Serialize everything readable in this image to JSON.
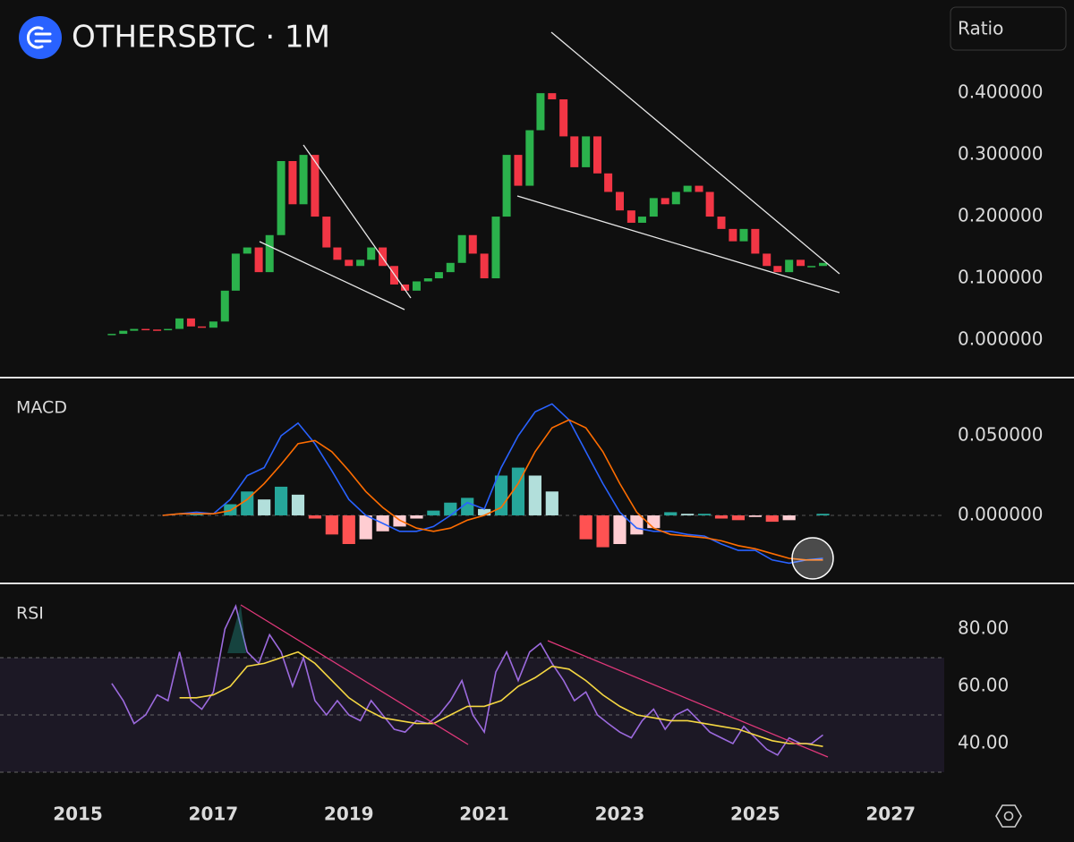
{
  "header": {
    "symbol_title": "OTHERSBTC · 1M",
    "scale_button": "Ratio"
  },
  "chart_data": [
    {
      "type": "candlestick",
      "x": [
        2015.5,
        2015.67,
        2015.83,
        2016,
        2016.17,
        2016.33,
        2016.5,
        2016.67,
        2016.83,
        2017,
        2017.17,
        2017.33,
        2017.5,
        2017.67,
        2017.83,
        2018,
        2018.17,
        2018.33,
        2018.5,
        2018.67,
        2018.83,
        2019,
        2019.17,
        2019.33,
        2019.5,
        2019.67,
        2019.83,
        2020,
        2020.17,
        2020.33,
        2020.5,
        2020.67,
        2020.83,
        2021,
        2021.17,
        2021.33,
        2021.5,
        2021.67,
        2021.83,
        2022,
        2022.17,
        2022.33,
        2022.5,
        2022.67,
        2022.83,
        2023,
        2023.17,
        2023.33,
        2023.5,
        2023.67,
        2023.83,
        2024,
        2024.17,
        2024.33,
        2024.5,
        2024.67,
        2024.83,
        2025,
        2025.17,
        2025.33,
        2025.5,
        2025.67,
        2025.83,
        2026
      ],
      "values": [
        0.01,
        0.015,
        0.018,
        0.017,
        0.016,
        0.018,
        0.035,
        0.022,
        0.02,
        0.03,
        0.08,
        0.14,
        0.15,
        0.11,
        0.17,
        0.29,
        0.22,
        0.3,
        0.2,
        0.15,
        0.13,
        0.12,
        0.13,
        0.15,
        0.12,
        0.09,
        0.08,
        0.095,
        0.1,
        0.11,
        0.125,
        0.17,
        0.14,
        0.1,
        0.2,
        0.3,
        0.25,
        0.34,
        0.4,
        0.39,
        0.33,
        0.28,
        0.33,
        0.27,
        0.24,
        0.21,
        0.19,
        0.2,
        0.23,
        0.22,
        0.24,
        0.25,
        0.24,
        0.2,
        0.18,
        0.16,
        0.18,
        0.14,
        0.12,
        0.11,
        0.13,
        0.12,
        0.12,
        0.125
      ],
      "up_color": "#2bb24c",
      "down_color": "#f23645",
      "xlim": [
        2013.85,
        2027.79
      ],
      "ylim": [
        -0.058,
        0.551
      ],
      "yticks": [
        {
          "value": 0.4,
          "label": "0.400000"
        },
        {
          "value": 0.3,
          "label": "0.300000"
        },
        {
          "value": 0.2,
          "label": "0.200000"
        },
        {
          "value": 0.1,
          "label": "0.100000"
        },
        {
          "value": 0,
          "label": "0.000000"
        }
      ]
    },
    {
      "type": "macd",
      "title": "MACD",
      "x": [
        2016.25,
        2016.5,
        2016.75,
        2017,
        2017.25,
        2017.5,
        2017.75,
        2018,
        2018.25,
        2018.5,
        2018.75,
        2019,
        2019.25,
        2019.5,
        2019.75,
        2020,
        2020.25,
        2020.5,
        2020.75,
        2021,
        2021.25,
        2021.5,
        2021.75,
        2022,
        2022.25,
        2022.5,
        2022.75,
        2023,
        2023.25,
        2023.5,
        2023.75,
        2024,
        2024.25,
        2024.5,
        2024.75,
        2025,
        2025.25,
        2025.5,
        2025.75,
        2026
      ],
      "histogram": [
        0,
        0,
        0.001,
        0,
        0.007,
        0.015,
        0.01,
        0.018,
        0.013,
        -0.002,
        -0.012,
        -0.018,
        -0.015,
        -0.01,
        -0.007,
        -0.002,
        0.003,
        0.008,
        0.011,
        0.004,
        0.025,
        0.03,
        0.025,
        0.015,
        0,
        -0.015,
        -0.02,
        -0.018,
        -0.012,
        -0.008,
        0.002,
        0.001,
        0.001,
        -0.002,
        -0.003,
        -0.001,
        -0.004,
        -0.003,
        0,
        0.001
      ],
      "histogram_colors": [
        "#26a69a",
        "#b2dfdb",
        "#ff5252",
        "#ffcdd2"
      ],
      "series": [
        {
          "color": "#2962ff",
          "values": [
            0,
            0.001,
            0.002,
            0.001,
            0.01,
            0.025,
            0.03,
            0.05,
            0.058,
            0.045,
            0.028,
            0.01,
            0,
            -0.005,
            -0.01,
            -0.01,
            -0.007,
            0,
            0.008,
            0.004,
            0.03,
            0.05,
            0.065,
            0.07,
            0.06,
            0.04,
            0.02,
            0.002,
            -0.008,
            -0.01,
            -0.01,
            -0.012,
            -0.013,
            -0.018,
            -0.022,
            -0.022,
            -0.028,
            -0.03,
            -0.028,
            -0.027
          ]
        },
        {
          "color": "#ff6d00",
          "values": [
            0,
            0.001,
            0.001,
            0.001,
            0.003,
            0.01,
            0.02,
            0.032,
            0.045,
            0.047,
            0.04,
            0.028,
            0.015,
            0.005,
            -0.003,
            -0.008,
            -0.01,
            -0.008,
            -0.003,
            0,
            0.005,
            0.02,
            0.04,
            0.055,
            0.06,
            0.055,
            0.04,
            0.02,
            0.002,
            -0.008,
            -0.012,
            -0.013,
            -0.014,
            -0.016,
            -0.019,
            -0.021,
            -0.024,
            -0.027,
            -0.028,
            -0.028
          ]
        }
      ],
      "xlim": [
        2013.85,
        2027.79
      ],
      "ylim": [
        -0.0416,
        0.0854
      ],
      "yticks": [
        {
          "value": 0.05,
          "label": "0.050000"
        },
        {
          "value": 0,
          "label": "0.000000"
        }
      ]
    },
    {
      "type": "rsi",
      "title": "RSI",
      "x": [
        2015.5,
        2015.67,
        2015.83,
        2016,
        2016.17,
        2016.33,
        2016.5,
        2016.67,
        2016.83,
        2017,
        2017.17,
        2017.33,
        2017.5,
        2017.67,
        2017.83,
        2018,
        2018.17,
        2018.33,
        2018.5,
        2018.67,
        2018.83,
        2019,
        2019.17,
        2019.33,
        2019.5,
        2019.67,
        2019.83,
        2020,
        2020.17,
        2020.33,
        2020.5,
        2020.67,
        2020.83,
        2021,
        2021.17,
        2021.33,
        2021.5,
        2021.67,
        2021.83,
        2022,
        2022.17,
        2022.33,
        2022.5,
        2022.67,
        2022.83,
        2023,
        2023.17,
        2023.33,
        2023.5,
        2023.67,
        2023.83,
        2024,
        2024.17,
        2024.33,
        2024.5,
        2024.67,
        2024.83,
        2025,
        2025.17,
        2025.33,
        2025.5,
        2025.67,
        2025.83,
        2026
      ],
      "series": [
        {
          "color": "#9c6ade",
          "values": [
            61,
            55,
            47,
            50,
            57,
            55,
            72,
            55,
            52,
            58,
            80,
            88,
            72,
            68,
            78,
            72,
            60,
            70,
            55,
            50,
            55,
            50,
            48,
            55,
            50,
            45,
            44,
            48,
            47,
            50,
            55,
            62,
            50,
            44,
            65,
            72,
            62,
            72,
            75,
            68,
            62,
            55,
            58,
            50,
            47,
            44,
            42,
            48,
            52,
            45,
            50,
            52,
            48,
            44,
            42,
            40,
            46,
            42,
            38,
            36,
            42,
            40,
            40,
            43
          ]
        }
      ],
      "ma": {
        "color": "#f5d742",
        "x": [
          2016.5,
          2016.75,
          2017,
          2017.25,
          2017.5,
          2017.75,
          2018,
          2018.25,
          2018.5,
          2018.75,
          2019,
          2019.25,
          2019.5,
          2019.75,
          2020,
          2020.25,
          2020.5,
          2020.75,
          2021,
          2021.25,
          2021.5,
          2021.75,
          2022,
          2022.25,
          2022.5,
          2022.75,
          2023,
          2023.25,
          2023.5,
          2023.75,
          2024,
          2024.25,
          2024.5,
          2024.75,
          2025,
          2025.25,
          2025.5,
          2025.75,
          2026
        ],
        "values": [
          56,
          56,
          57,
          60,
          67,
          68,
          70,
          72,
          68,
          62,
          56,
          52,
          49,
          48,
          47,
          47,
          50,
          53,
          53,
          55,
          60,
          63,
          67,
          66,
          62,
          57,
          53,
          50,
          49,
          48,
          48,
          47,
          46,
          45,
          43,
          41,
          40,
          40,
          39
        ]
      },
      "levels": [
        70,
        50,
        30
      ],
      "xlim": [
        2013.85,
        2027.79
      ],
      "ylim": [
        24.7,
        95.3
      ],
      "yticks": [
        {
          "value": 80,
          "label": "80.00"
        },
        {
          "value": 60,
          "label": "60.00"
        },
        {
          "value": 40,
          "label": "40.00"
        }
      ],
      "xticks": [
        2015,
        2017,
        2019,
        2021,
        2023,
        2025,
        2027
      ]
    }
  ]
}
